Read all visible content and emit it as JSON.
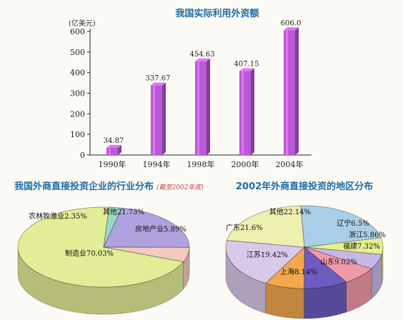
{
  "chart_data": [
    {
      "type": "bar",
      "title": "我国实际利用外资额",
      "ylabel": "(亿美元)",
      "categories": [
        "1990年",
        "1994年",
        "1998年",
        "2000年",
        "2004年"
      ],
      "values": [
        34.87,
        337.67,
        454.63,
        407.15,
        606.0
      ],
      "value_labels": [
        "34.87",
        "337.67",
        "454.63",
        "407.15",
        "606.0"
      ],
      "ylim": [
        0,
        600
      ],
      "yticks": [
        "0",
        "100",
        "200",
        "300",
        "400",
        "500",
        "600"
      ],
      "grid": false,
      "bar_color": "#b85ad6"
    },
    {
      "type": "pie",
      "title": "我国外商直接投资企业的行业分布",
      "subtitle": "(截至2002年底)",
      "slices": [
        {
          "label": "其他21.73%",
          "value": 21.73,
          "color": "#b0a2de"
        },
        {
          "label": "房地产业5.89%",
          "value": 5.89,
          "color": "#f3c9c0"
        },
        {
          "label": "制造业70.03%",
          "value": 70.03,
          "color": "#e3ec96"
        },
        {
          "label": "农林牧渔业2.35%",
          "value": 2.35,
          "color": "#9ad8c6"
        }
      ]
    },
    {
      "type": "pie",
      "title": "2002年外商直接投资的地区分布",
      "slices": [
        {
          "label": "其他22.14%",
          "value": 22.14,
          "color": "#a9cfe8"
        },
        {
          "label": "辽宁6.5%",
          "value": 6.5,
          "color": "#e6ef8e"
        },
        {
          "label": "浙江5.86%",
          "value": 5.86,
          "color": "#c6b8e6"
        },
        {
          "label": "福建7.32%",
          "value": 7.32,
          "color": "#f09aa8"
        },
        {
          "label": "山东9.02%",
          "value": 9.02,
          "color": "#6d5bbf"
        },
        {
          "label": "上海8.14%",
          "value": 8.14,
          "color": "#f3a84e"
        },
        {
          "label": "江苏19.42%",
          "value": 19.42,
          "color": "#d9c8ea"
        },
        {
          "label": "广东21.6%",
          "value": 21.6,
          "color": "#eef0b0"
        }
      ]
    }
  ]
}
